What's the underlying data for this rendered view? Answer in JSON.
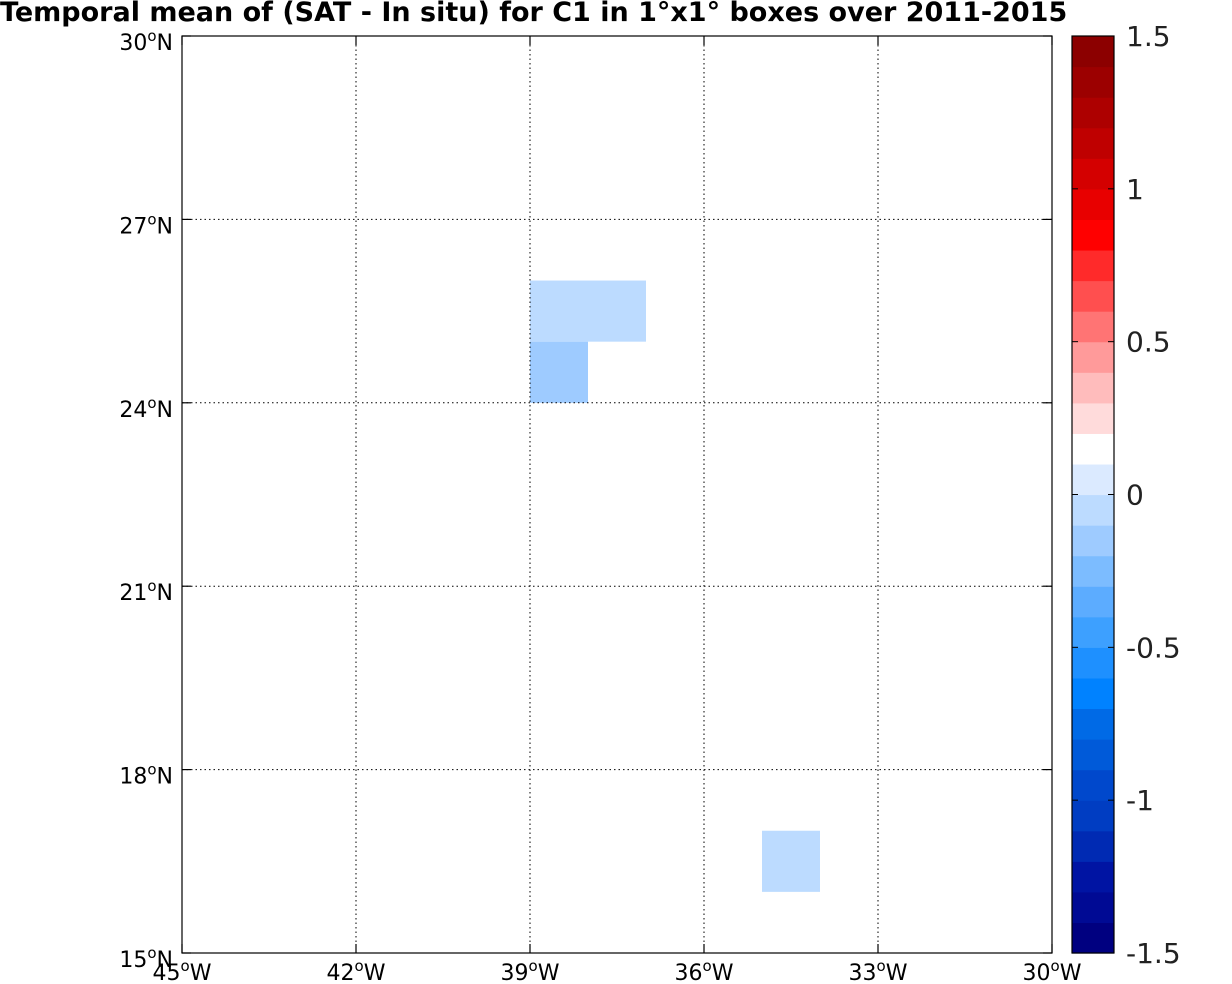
{
  "title": "Temporal mean of (SAT - In situ) for C1 in 1°x1° boxes over 2011-2015",
  "chart_data": {
    "type": "heatmap",
    "title": "Temporal mean of (SAT - In situ) for C1 in 1°x1° boxes over 2011-2015",
    "x_axis": {
      "unit": "longitude",
      "range": [
        -45,
        -30
      ],
      "ticks": [
        -45,
        -42,
        -39,
        -36,
        -33,
        -30
      ],
      "tick_labels": [
        {
          "deg": "45",
          "hemi": "W"
        },
        {
          "deg": "42",
          "hemi": "W"
        },
        {
          "deg": "39",
          "hemi": "W"
        },
        {
          "deg": "36",
          "hemi": "W"
        },
        {
          "deg": "33",
          "hemi": "W"
        },
        {
          "deg": "30",
          "hemi": "W"
        }
      ]
    },
    "y_axis": {
      "unit": "latitude",
      "range": [
        15,
        30
      ],
      "ticks": [
        15,
        18,
        21,
        24,
        27,
        30
      ],
      "tick_labels": [
        {
          "deg": "15",
          "hemi": "N"
        },
        {
          "deg": "18",
          "hemi": "N"
        },
        {
          "deg": "21",
          "hemi": "N"
        },
        {
          "deg": "24",
          "hemi": "N"
        },
        {
          "deg": "27",
          "hemi": "N"
        },
        {
          "deg": "30",
          "hemi": "N"
        }
      ]
    },
    "grid": true,
    "boxes": [
      {
        "lon_min": -39,
        "lon_max": -38,
        "lat_min": 25,
        "lat_max": 26,
        "value": -0.05
      },
      {
        "lon_min": -38,
        "lon_max": -37,
        "lat_min": 25,
        "lat_max": 26,
        "value": -0.05
      },
      {
        "lon_min": -39,
        "lon_max": -38,
        "lat_min": 24,
        "lat_max": 25,
        "value": -0.15
      },
      {
        "lon_min": -35,
        "lon_max": -34,
        "lat_min": 16,
        "lat_max": 17,
        "value": -0.05
      }
    ],
    "colorbar": {
      "range": [
        -1.5,
        1.5
      ],
      "step": 0.1,
      "position": "right",
      "tick_values": [
        -1.5,
        -1,
        -0.5,
        0,
        0.5,
        1,
        1.5
      ],
      "tick_labels": [
        "-1.5",
        "-1",
        "-0.5",
        "0",
        "0.5",
        "1",
        "1.5"
      ],
      "colors_low_to_high": [
        "#000080",
        "#000a94",
        "#0014a3",
        "#002ab3",
        "#003dc2",
        "#0048cc",
        "#005ad9",
        "#006ae6",
        "#0082ff",
        "#1e90ff",
        "#3da0ff",
        "#5cacff",
        "#7cbcff",
        "#9ecbff",
        "#bcdbff",
        "#dbeaff",
        "#ffffff",
        "#ffdbdb",
        "#ffbcbc",
        "#ff9a9a",
        "#ff7474",
        "#ff4f4f",
        "#ff2a2a",
        "#ff0000",
        "#e80000",
        "#d40000",
        "#bf0000",
        "#ad0000",
        "#9c0000",
        "#8c0000"
      ]
    }
  }
}
